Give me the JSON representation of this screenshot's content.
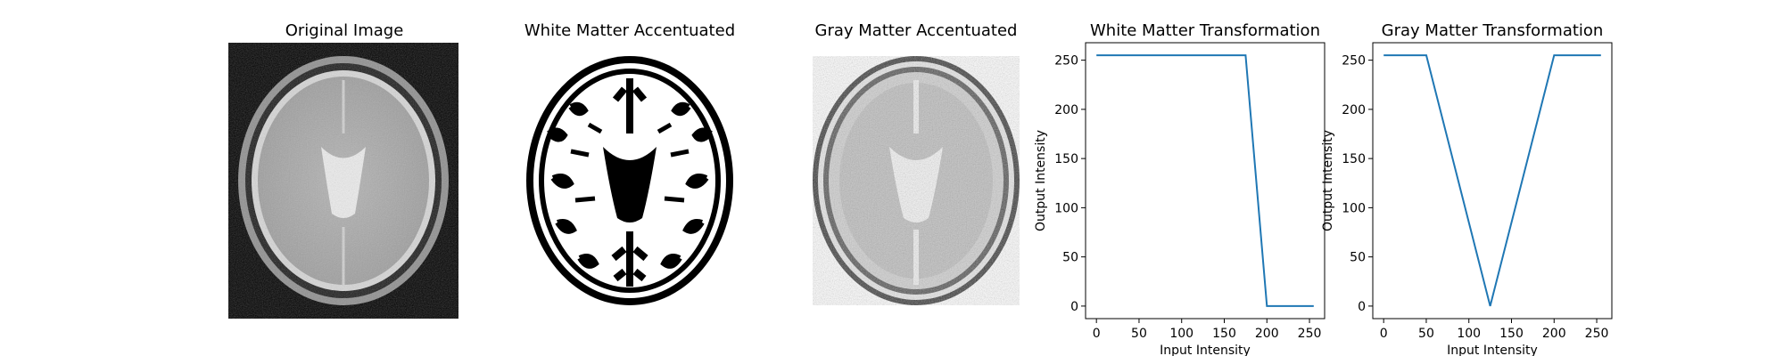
{
  "panels": {
    "original": {
      "title": "Original Image"
    },
    "white": {
      "title": "White Matter Accentuated"
    },
    "gray": {
      "title": "Gray Matter Accentuated"
    }
  },
  "colors": {
    "line": "#1f77b4",
    "axis": "#000000"
  },
  "chart_data": [
    {
      "type": "line",
      "title": "White Matter Transformation",
      "xlabel": "Input Intensity",
      "ylabel": "Output Intensity",
      "xlim": [
        -12.75,
        267.75
      ],
      "ylim": [
        -12.75,
        267.75
      ],
      "xticks": [
        0,
        50,
        100,
        150,
        200,
        250
      ],
      "yticks": [
        0,
        50,
        100,
        150,
        200,
        250
      ],
      "x": [
        0,
        175,
        200,
        255
      ],
      "y": [
        255,
        255,
        0,
        0
      ]
    },
    {
      "type": "line",
      "title": "Gray Matter Transformation",
      "xlabel": "Input Intensity",
      "ylabel": "Output Intensity",
      "xlim": [
        -12.75,
        267.75
      ],
      "ylim": [
        -12.75,
        267.75
      ],
      "xticks": [
        0,
        50,
        100,
        150,
        200,
        250
      ],
      "yticks": [
        0,
        50,
        100,
        150,
        200,
        250
      ],
      "x": [
        0,
        50,
        125,
        200,
        255
      ],
      "y": [
        255,
        255,
        0,
        255,
        255
      ]
    }
  ]
}
